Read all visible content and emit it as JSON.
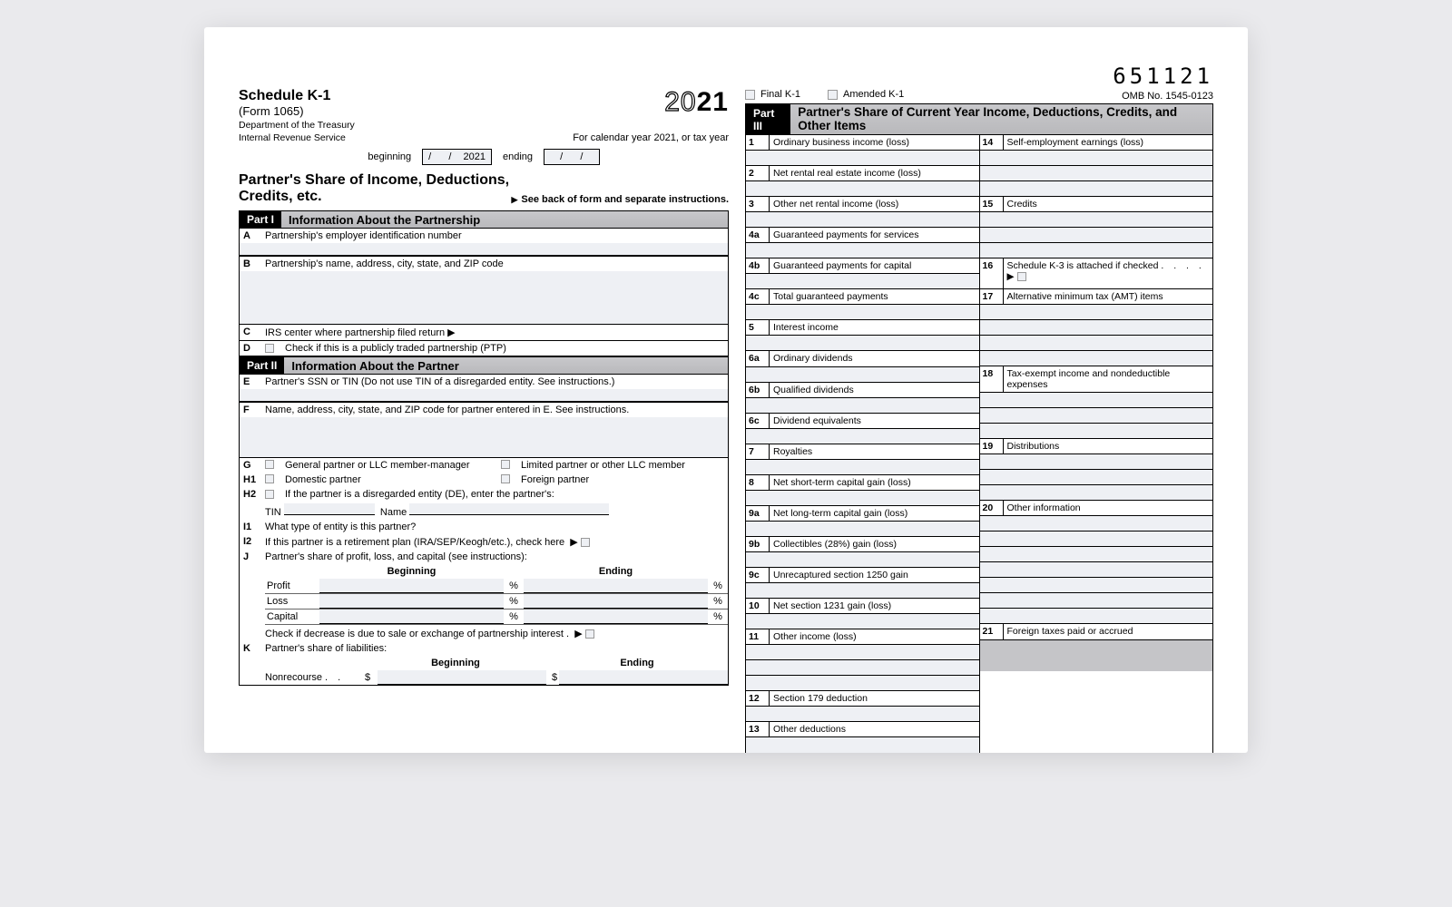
{
  "form_number": "651121",
  "omb": "OMB No. 1545-0123",
  "header": {
    "title": "Schedule K-1",
    "subtitle": "(Form 1065)",
    "dept1": "Department of the Treasury",
    "dept2": "Internal Revenue Service",
    "year_outline": "20",
    "year_bold": "21",
    "cal_text": "For calendar year 2021, or tax year",
    "beginning": "beginning",
    "ending": "ending",
    "date_sep": "/",
    "date_year": "2021",
    "h2a": "Partner's Share of Income, Deductions,",
    "h2b": "Credits, etc.",
    "seeback": "See back of form and separate instructions."
  },
  "checks": {
    "final": "Final K-1",
    "amended": "Amended K-1"
  },
  "part1": {
    "bar": "Part I",
    "title": "Information About the Partnership",
    "A": "Partnership's employer identification number",
    "B": "Partnership's name, address, city, state, and ZIP code",
    "C": "IRS center where partnership filed return ▶",
    "D": "Check if this is a publicly traded partnership (PTP)"
  },
  "part2": {
    "bar": "Part II",
    "title": "Information About the Partner",
    "E": "Partner's SSN or TIN (Do not use TIN of a disregarded entity. See instructions.)",
    "F": "Name, address, city, state, and ZIP code for partner entered in E. See instructions.",
    "G1": "General partner or LLC member-manager",
    "G2": "Limited partner or other LLC member",
    "H1a": "Domestic partner",
    "H1b": "Foreign partner",
    "H2": "If the partner is a disregarded entity (DE), enter the partner's:",
    "H2_tin": "TIN",
    "H2_name": "Name",
    "I1": "What type of entity is this partner?",
    "I2": "If this partner is a retirement plan (IRA/SEP/Keogh/etc.), check here",
    "J": "Partner's share of profit, loss, and capital (see instructions):",
    "J_beg": "Beginning",
    "J_end": "Ending",
    "J_profit": "Profit",
    "J_loss": "Loss",
    "J_capital": "Capital",
    "J_note": "Check if decrease is due to sale or exchange of partnership interest",
    "K": "Partner's share of liabilities:",
    "K_nonrecourse": "Nonrecourse",
    "K_dollar": "$"
  },
  "part3": {
    "bar": "Part III",
    "title": "Partner's Share of Current Year Income, Deductions, Credits, and Other Items",
    "left": [
      {
        "n": "1",
        "t": "Ordinary business income (loss)"
      },
      {
        "n": "2",
        "t": "Net rental real estate income (loss)"
      },
      {
        "n": "3",
        "t": "Other net rental income (loss)"
      },
      {
        "n": "4a",
        "t": "Guaranteed payments for services"
      },
      {
        "n": "4b",
        "t": "Guaranteed payments for capital"
      },
      {
        "n": "4c",
        "t": "Total guaranteed payments"
      },
      {
        "n": "5",
        "t": "Interest income"
      },
      {
        "n": "6a",
        "t": "Ordinary dividends"
      },
      {
        "n": "6b",
        "t": "Qualified dividends"
      },
      {
        "n": "6c",
        "t": "Dividend equivalents"
      },
      {
        "n": "7",
        "t": "Royalties"
      },
      {
        "n": "8",
        "t": "Net short-term capital gain (loss)"
      },
      {
        "n": "9a",
        "t": "Net long-term capital gain (loss)"
      },
      {
        "n": "9b",
        "t": "Collectibles (28%) gain (loss)"
      },
      {
        "n": "9c",
        "t": "Unrecaptured section 1250 gain"
      },
      {
        "n": "10",
        "t": "Net section 1231 gain (loss)"
      },
      {
        "n": "11",
        "t": "Other income (loss)"
      },
      {
        "n": "12",
        "t": "Section 179 deduction"
      },
      {
        "n": "13",
        "t": "Other deductions"
      }
    ],
    "right": [
      {
        "n": "14",
        "t": "Self-employment earnings (loss)",
        "blanks": 3
      },
      {
        "n": "15",
        "t": "Credits",
        "blanks": 3
      },
      {
        "n": "16",
        "t": "Schedule K-3 is attached if checked",
        "check": true,
        "blanks": 0
      },
      {
        "n": "17",
        "t": "Alternative minimum tax (AMT) items",
        "blanks": 4
      },
      {
        "n": "18",
        "t": "Tax-exempt income and nondeductible expenses",
        "blanks": 3
      },
      {
        "n": "19",
        "t": "Distributions",
        "blanks": 3
      },
      {
        "n": "20",
        "t": "Other information",
        "blanks": 7
      },
      {
        "n": "21",
        "t": "Foreign taxes paid or accrued",
        "blanks": 0
      }
    ]
  }
}
